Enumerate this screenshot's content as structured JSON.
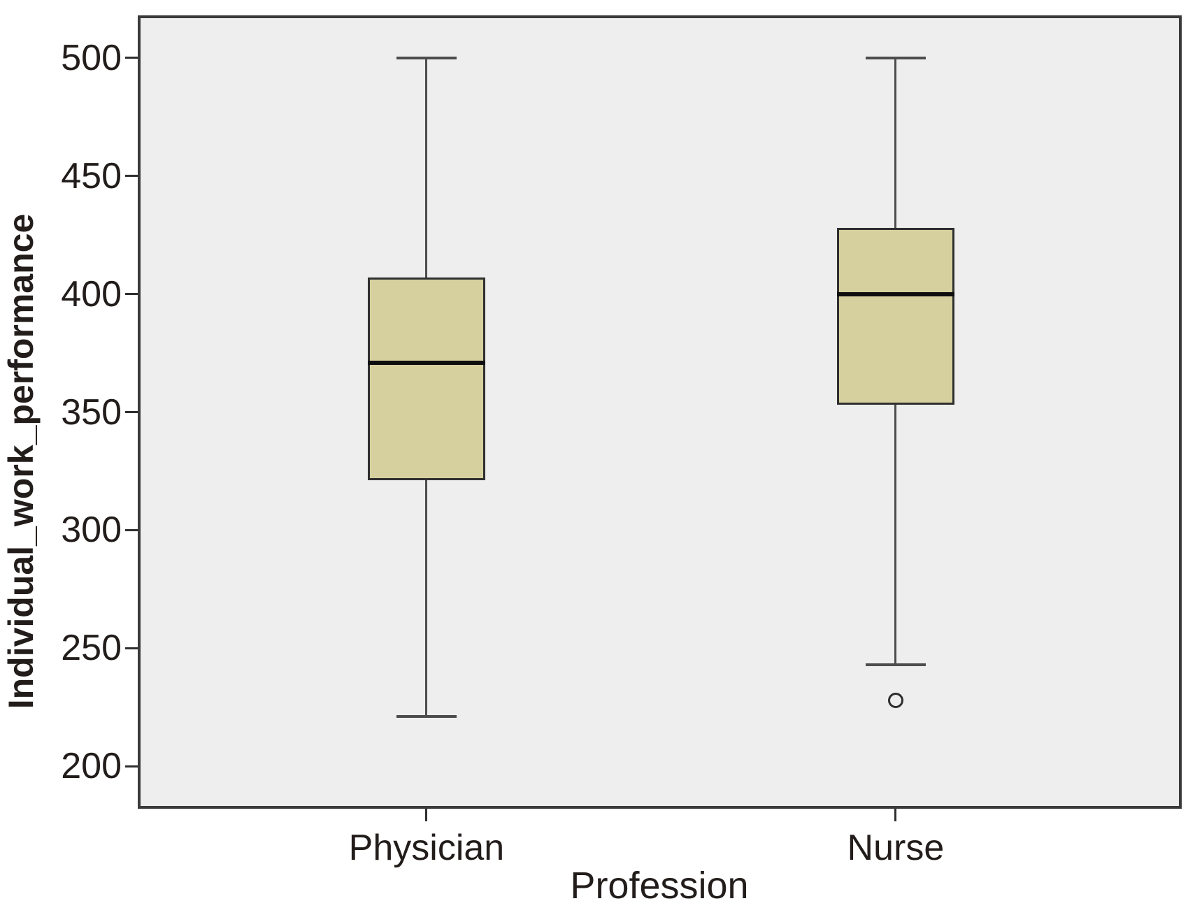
{
  "chart_data": {
    "type": "boxplot",
    "title": "",
    "xlabel": "Profession",
    "ylabel": "Individual_work_performance",
    "categories": [
      "Physician",
      "Nurse"
    ],
    "ylim": [
      182,
      518
    ],
    "yticks": [
      200,
      250,
      300,
      350,
      400,
      450,
      500
    ],
    "grid": false,
    "legend": "none",
    "series": [
      {
        "category": "Physician",
        "whisker_low": 221,
        "q1": 321,
        "median": 371,
        "q3": 407,
        "whisker_high": 500,
        "outliers": []
      },
      {
        "category": "Nurse",
        "whisker_low": 243,
        "q1": 353,
        "median": 400,
        "q3": 428,
        "whisker_high": 500,
        "outliers": [
          228
        ]
      }
    ],
    "colors": {
      "box_fill": "#d6d09f",
      "box_border": "#2f2f2f",
      "median": "#0e0e0e",
      "whisker": "#4d4d4d",
      "plot_background": "#efeeef",
      "frame_border": "#3a3a3a",
      "text": "#221d1b"
    }
  }
}
